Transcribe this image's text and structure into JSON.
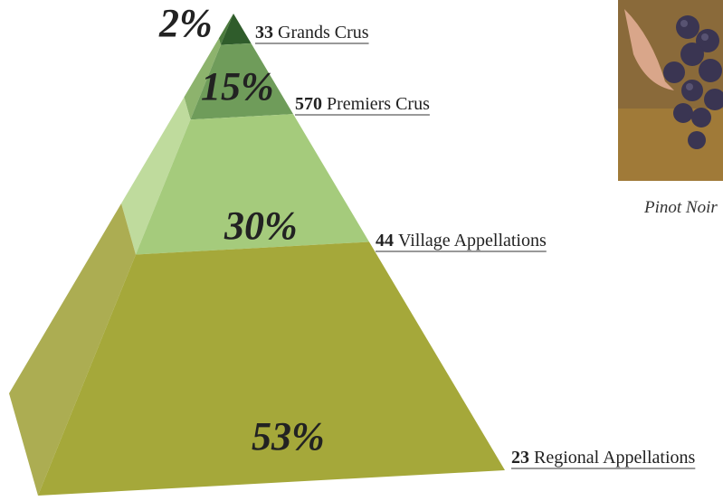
{
  "chart_data": {
    "type": "pyramid",
    "categories": [
      "Grands Crus",
      "Premiers Crus",
      "Village Appellations",
      "Regional Appellations"
    ],
    "values": [
      2,
      15,
      30,
      53
    ],
    "value_labels": [
      "2%",
      "15%",
      "30%",
      "53%"
    ],
    "counts": [
      33,
      570,
      44,
      23
    ],
    "front_colors": [
      "#2f5c2b",
      "#6f9c5a",
      "#a5cb7c",
      "#a5a83a"
    ],
    "side_colors": [
      "#4d7c3e",
      "#8db36d",
      "#bfdb9d",
      "#acad52"
    ],
    "caption": "Pinot Noir"
  }
}
